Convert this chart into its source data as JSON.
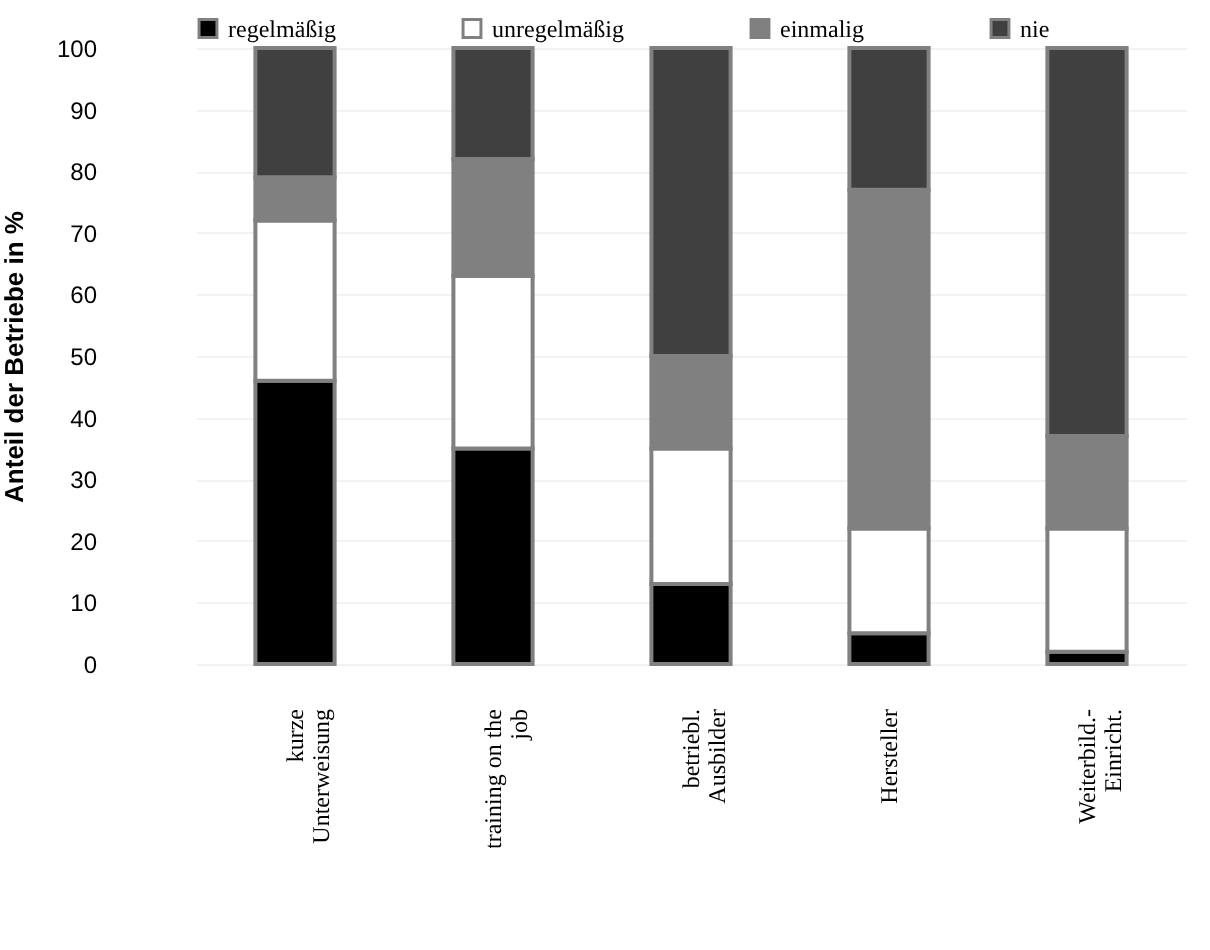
{
  "chart_data": {
    "type": "bar",
    "stacked": true,
    "ylabel": "Anteil der Betriebe in %",
    "categories": [
      "kurze\nUnterweisung",
      "training on the\njob",
      "betriebl.\nAusbilder",
      "Hersteller",
      "Weiterbild.-\nEinricht."
    ],
    "series": [
      {
        "name": "regelmäßig",
        "color": "#000000",
        "values": [
          46,
          35,
          13,
          5,
          2
        ]
      },
      {
        "name": "unregelmäßig",
        "color": "#ffffff",
        "values": [
          26,
          28,
          22,
          17,
          20
        ]
      },
      {
        "name": "einmalig",
        "color": "#808080",
        "values": [
          7,
          19,
          15,
          55,
          15
        ]
      },
      {
        "name": "nie",
        "color": "#404040",
        "values": [
          21,
          18,
          50,
          23,
          63
        ]
      }
    ],
    "ylim": [
      0,
      100
    ],
    "yticks": [
      0,
      10,
      20,
      30,
      40,
      50,
      60,
      70,
      80,
      90,
      100
    ],
    "grid": "y",
    "legend": "top"
  }
}
